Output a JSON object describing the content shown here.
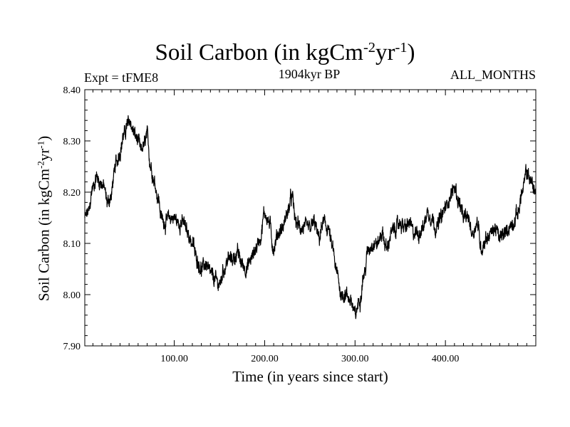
{
  "chart_data": {
    "type": "line",
    "title": {
      "pre": "Soil Carbon (in kgCm",
      "sup1": "-2",
      "mid": "yr",
      "sup2": "-1",
      "post": ")"
    },
    "subtitle_left": "Expt = tFME8",
    "subtitle_center": "1904kyr BP",
    "subtitle_right": "ALL_MONTHS",
    "xlabel": "Time (in years since start)",
    "ylabel": {
      "pre": "Soil Carbon (in kgCm",
      "sup1": "-2",
      "mid": "yr",
      "sup2": "-1",
      "post": ")"
    },
    "xlim": [
      1,
      500
    ],
    "ylim": [
      7.9,
      8.4
    ],
    "xticks": [
      {
        "value": 100,
        "label": "100.00"
      },
      {
        "value": 200,
        "label": "200.00"
      },
      {
        "value": 300,
        "label": "300.00"
      },
      {
        "value": 400,
        "label": "400.00"
      }
    ],
    "yticks": [
      {
        "value": 7.9,
        "label": "7.90"
      },
      {
        "value": 8.0,
        "label": "8.00"
      },
      {
        "value": 8.1,
        "label": "8.10"
      },
      {
        "value": 8.2,
        "label": "8.20"
      },
      {
        "value": 8.3,
        "label": "8.30"
      },
      {
        "value": 8.4,
        "label": "8.40"
      }
    ],
    "grid": false,
    "series": [
      {
        "name": "Soil Carbon",
        "color": "#000000",
        "x": [
          1,
          5,
          10,
          14,
          18,
          22,
          26,
          30,
          33,
          36,
          40,
          44,
          48,
          51,
          54,
          57,
          60,
          63,
          66,
          70,
          74,
          78,
          82,
          86,
          90,
          95,
          100,
          105,
          110,
          115,
          120,
          125,
          130,
          135,
          140,
          145,
          150,
          155,
          160,
          165,
          170,
          175,
          180,
          185,
          190,
          195,
          200,
          205,
          210,
          215,
          220,
          225,
          230,
          235,
          240,
          245,
          250,
          255,
          260,
          265,
          270,
          275,
          280,
          285,
          290,
          295,
          300,
          305,
          310,
          315,
          320,
          325,
          330,
          335,
          340,
          345,
          350,
          355,
          360,
          365,
          370,
          375,
          380,
          385,
          390,
          395,
          400,
          405,
          410,
          415,
          420,
          425,
          430,
          435,
          440,
          445,
          450,
          455,
          460,
          465,
          470,
          475,
          480,
          485,
          490,
          495,
          500
        ],
        "values": [
          8.15,
          8.16,
          8.21,
          8.23,
          8.22,
          8.21,
          8.18,
          8.19,
          8.23,
          8.26,
          8.28,
          8.31,
          8.33,
          8.34,
          8.32,
          8.31,
          8.3,
          8.28,
          8.29,
          8.31,
          8.25,
          8.22,
          8.19,
          8.15,
          8.14,
          8.15,
          8.15,
          8.14,
          8.14,
          8.12,
          8.1,
          8.07,
          8.05,
          8.06,
          8.04,
          8.03,
          8.02,
          8.05,
          8.07,
          8.07,
          8.08,
          8.06,
          8.05,
          8.07,
          8.09,
          8.11,
          8.16,
          8.14,
          8.09,
          8.12,
          8.13,
          8.16,
          8.19,
          8.14,
          8.13,
          8.13,
          8.13,
          8.14,
          8.11,
          8.14,
          8.13,
          8.09,
          8.04,
          8.0,
          8.0,
          7.99,
          7.96,
          7.99,
          8.04,
          8.09,
          8.1,
          8.1,
          8.12,
          8.09,
          8.12,
          8.13,
          8.14,
          8.13,
          8.14,
          8.12,
          8.12,
          8.13,
          8.16,
          8.15,
          8.13,
          8.15,
          8.17,
          8.19,
          8.21,
          8.18,
          8.15,
          8.15,
          8.12,
          8.14,
          8.09,
          8.11,
          8.12,
          8.13,
          8.11,
          8.12,
          8.13,
          8.14,
          8.16,
          8.2,
          8.24,
          8.22,
          8.2
        ]
      }
    ]
  }
}
